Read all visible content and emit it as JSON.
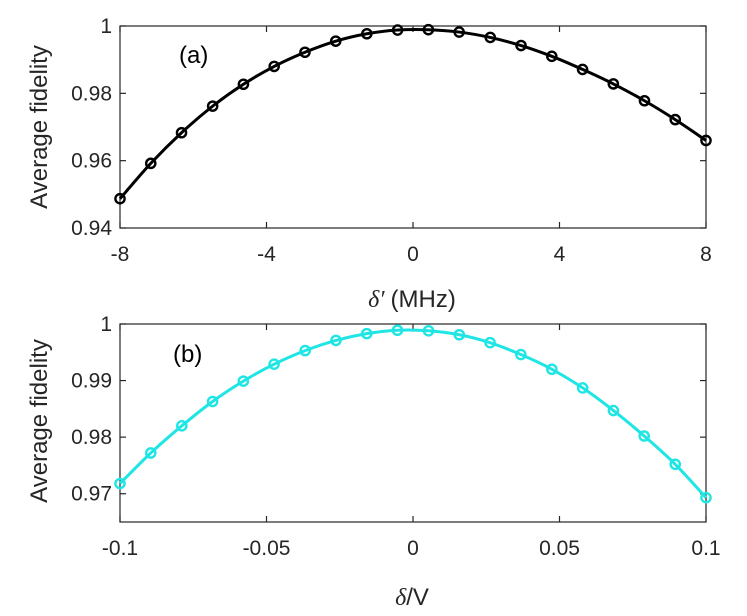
{
  "chart_data": [
    {
      "type": "line",
      "panel_label": "(a)",
      "xlabel_symbol": "δ′",
      "xlabel_unit": "(MHz)",
      "ylabel": "Average fidelity",
      "xlim": [
        -8,
        8
      ],
      "ylim": [
        0.94,
        1.0
      ],
      "xticks": [
        -8,
        -4,
        0,
        4,
        8
      ],
      "xtick_labels": [
        "-8",
        "-4",
        "0",
        "4",
        "8"
      ],
      "yticks": [
        0.94,
        0.96,
        0.98,
        1.0
      ],
      "ytick_labels": [
        "0.94",
        "0.96",
        "0.98",
        "1"
      ],
      "series": [
        {
          "name": "fidelity-a",
          "color": "#000000",
          "marker": "circle",
          "x": [
            -8,
            -7.16,
            -6.32,
            -5.47,
            -4.63,
            -3.79,
            -2.95,
            -2.11,
            -1.26,
            -0.42,
            0.42,
            1.26,
            2.11,
            2.95,
            3.79,
            4.63,
            5.47,
            6.32,
            7.16,
            8
          ],
          "y": [
            0.9487,
            0.9592,
            0.9683,
            0.9762,
            0.9827,
            0.988,
            0.9922,
            0.9955,
            0.9977,
            0.9988,
            0.9989,
            0.9982,
            0.9966,
            0.9942,
            0.991,
            0.9871,
            0.9828,
            0.9778,
            0.9722,
            0.966
          ]
        }
      ]
    },
    {
      "type": "line",
      "panel_label": "(b)",
      "xlabel_symbol": "δ",
      "xlabel_unit": "/V",
      "ylabel": "Average fidelity",
      "xlim": [
        -0.1,
        0.1
      ],
      "ylim": [
        0.965,
        1.0
      ],
      "xticks": [
        -0.1,
        -0.05,
        0,
        0.05,
        0.1
      ],
      "xtick_labels": [
        "-0.1",
        "-0.05",
        "0",
        "0.05",
        "0.1"
      ],
      "yticks": [
        0.97,
        0.98,
        0.99,
        1.0
      ],
      "ytick_labels": [
        "0.97",
        "0.98",
        "0.99",
        "1"
      ],
      "series": [
        {
          "name": "fidelity-b",
          "color": "#1fe5e5",
          "marker": "circle",
          "x": [
            -0.1,
            -0.0895,
            -0.0789,
            -0.0684,
            -0.0579,
            -0.0474,
            -0.0368,
            -0.0263,
            -0.0158,
            -0.0053,
            0.0053,
            0.0158,
            0.0263,
            0.0368,
            0.0474,
            0.0579,
            0.0684,
            0.0789,
            0.0895,
            0.1
          ],
          "y": [
            0.9718,
            0.9772,
            0.982,
            0.9863,
            0.9899,
            0.9929,
            0.9953,
            0.9971,
            0.9983,
            0.9989,
            0.9988,
            0.9981,
            0.9967,
            0.9946,
            0.992,
            0.9887,
            0.9847,
            0.9802,
            0.9752,
            0.9693
          ]
        }
      ]
    }
  ]
}
